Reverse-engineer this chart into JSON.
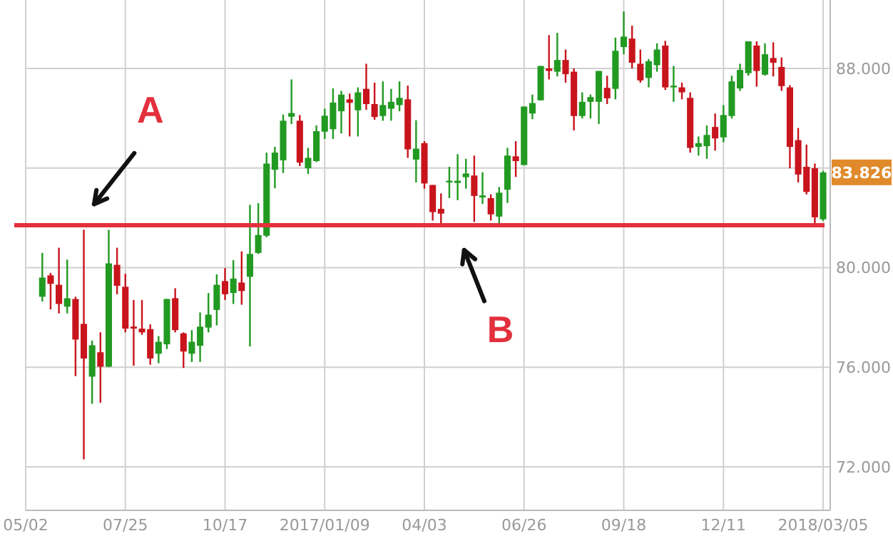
{
  "chart_data": {
    "type": "candlestick",
    "x": [
      "2016-05-16",
      "2016-05-23",
      "2016-05-30",
      "2016-06-06",
      "2016-06-13",
      "2016-06-20",
      "2016-06-27",
      "2016-07-04",
      "2016-07-11",
      "2016-07-18",
      "2016-07-25",
      "2016-08-01",
      "2016-08-08",
      "2016-08-15",
      "2016-08-22",
      "2016-08-29",
      "2016-09-05",
      "2016-09-12",
      "2016-09-19",
      "2016-09-26",
      "2016-10-03",
      "2016-10-10",
      "2016-10-17",
      "2016-10-24",
      "2016-10-31",
      "2016-11-07",
      "2016-11-14",
      "2016-11-21",
      "2016-11-28",
      "2016-12-05",
      "2016-12-12",
      "2016-12-19",
      "2016-12-26",
      "2017-01-02",
      "2017-01-09",
      "2017-01-16",
      "2017-01-23",
      "2017-01-30",
      "2017-02-06",
      "2017-02-13",
      "2017-02-20",
      "2017-02-27",
      "2017-03-06",
      "2017-03-13",
      "2017-03-20",
      "2017-03-27",
      "2017-04-03",
      "2017-04-10",
      "2017-04-17",
      "2017-04-24",
      "2017-05-01",
      "2017-05-08",
      "2017-05-15",
      "2017-05-22",
      "2017-05-29",
      "2017-06-05",
      "2017-06-12",
      "2017-06-19",
      "2017-06-26",
      "2017-07-03",
      "2017-07-10",
      "2017-07-17",
      "2017-07-24",
      "2017-07-31",
      "2017-08-07",
      "2017-08-14",
      "2017-08-21",
      "2017-08-28",
      "2017-09-04",
      "2017-09-11",
      "2017-09-18",
      "2017-09-25",
      "2017-10-02",
      "2017-10-09",
      "2017-10-16",
      "2017-10-23",
      "2017-10-30",
      "2017-11-06",
      "2017-11-13",
      "2017-11-20",
      "2017-11-27",
      "2017-12-04",
      "2017-12-11",
      "2017-12-18",
      "2017-12-25",
      "2018-01-01",
      "2018-01-08",
      "2018-01-15",
      "2018-01-22",
      "2018-01-29",
      "2018-02-05",
      "2018-02-12",
      "2018-02-19",
      "2018-02-26",
      "2018-03-05"
    ],
    "ohlc": [
      [
        78.83,
        80.59,
        78.64,
        79.6
      ],
      [
        79.69,
        79.79,
        78.32,
        79.35
      ],
      [
        79.31,
        80.8,
        78.16,
        78.54
      ],
      [
        78.43,
        80.32,
        78.16,
        78.77
      ],
      [
        78.74,
        78.83,
        75.64,
        77.11
      ],
      [
        77.74,
        81.52,
        72.3,
        76.35
      ],
      [
        75.62,
        77.07,
        74.53,
        76.88
      ],
      [
        76.6,
        77.4,
        74.57,
        76.02
      ],
      [
        76.02,
        81.52,
        76.0,
        80.17
      ],
      [
        80.11,
        80.8,
        78.93,
        79.27
      ],
      [
        79.23,
        79.75,
        77.4,
        77.55
      ],
      [
        77.63,
        78.7,
        76.06,
        77.55
      ],
      [
        77.55,
        78.7,
        77.3,
        77.4
      ],
      [
        77.53,
        77.72,
        76.1,
        76.35
      ],
      [
        76.54,
        77.25,
        76.16,
        77.02
      ],
      [
        76.92,
        78.74,
        76.73,
        78.74
      ],
      [
        78.77,
        79.17,
        77.4,
        77.49
      ],
      [
        77.36,
        77.4,
        75.97,
        76.63
      ],
      [
        76.54,
        77.49,
        76.21,
        77.02
      ],
      [
        76.86,
        78.2,
        76.21,
        77.63
      ],
      [
        77.59,
        78.98,
        77.4,
        78.11
      ],
      [
        78.3,
        79.73,
        77.68,
        79.31
      ],
      [
        79.46,
        79.98,
        78.7,
        78.93
      ],
      [
        78.98,
        80.3,
        78.54,
        79.56
      ],
      [
        79.4,
        80.65,
        78.51,
        79.06
      ],
      [
        79.63,
        82.52,
        76.83,
        80.55
      ],
      [
        80.59,
        82.59,
        80.55,
        81.31
      ],
      [
        81.28,
        84.62,
        81.22,
        84.18
      ],
      [
        83.93,
        84.85,
        83.19,
        84.62
      ],
      [
        84.31,
        86.15,
        83.8,
        85.9
      ],
      [
        86.06,
        87.56,
        85.77,
        86.21
      ],
      [
        85.9,
        86.13,
        84.08,
        84.22
      ],
      [
        83.99,
        84.81,
        83.76,
        84.41
      ],
      [
        84.28,
        85.71,
        84.24,
        85.48
      ],
      [
        85.46,
        86.38,
        85.17,
        86.1
      ],
      [
        85.56,
        87.2,
        85.17,
        86.63
      ],
      [
        86.28,
        87.1,
        85.39,
        86.95
      ],
      [
        86.76,
        86.99,
        85.27,
        86.62
      ],
      [
        86.32,
        87.24,
        85.27,
        87.04
      ],
      [
        87.18,
        88.19,
        86.34,
        86.57
      ],
      [
        86.57,
        87.43,
        85.94,
        86.05
      ],
      [
        86.09,
        87.48,
        85.9,
        86.53
      ],
      [
        86.38,
        87.18,
        85.9,
        86.66
      ],
      [
        86.53,
        87.48,
        86.28,
        86.82
      ],
      [
        86.76,
        87.31,
        84.41,
        84.75
      ],
      [
        84.34,
        85.92,
        83.42,
        84.78
      ],
      [
        85.0,
        85.08,
        83.17,
        83.38
      ],
      [
        83.32,
        83.32,
        81.89,
        82.23
      ],
      [
        82.36,
        82.98,
        81.66,
        82.17
      ],
      [
        83.42,
        84.05,
        82.79,
        83.49
      ],
      [
        83.4,
        84.56,
        82.71,
        83.49
      ],
      [
        83.63,
        84.37,
        83.17,
        83.78
      ],
      [
        83.7,
        84.5,
        81.83,
        82.88
      ],
      [
        82.82,
        83.83,
        82.56,
        82.9
      ],
      [
        82.79,
        82.94,
        81.89,
        82.14
      ],
      [
        82.05,
        83.24,
        81.76,
        83.01
      ],
      [
        83.13,
        84.81,
        82.6,
        84.5
      ],
      [
        84.47,
        85.08,
        83.64,
        84.28
      ],
      [
        84.12,
        86.47,
        84.12,
        86.47
      ],
      [
        86.19,
        86.95,
        85.96,
        86.61
      ],
      [
        86.72,
        88.1,
        86.72,
        88.1
      ],
      [
        88.0,
        89.34,
        87.56,
        87.9
      ],
      [
        87.87,
        89.43,
        87.68,
        88.34
      ],
      [
        88.34,
        88.76,
        87.43,
        87.77
      ],
      [
        87.87,
        88.0,
        85.51,
        86.09
      ],
      [
        86.09,
        87.04,
        85.99,
        86.66
      ],
      [
        86.66,
        86.95,
        85.99,
        86.85
      ],
      [
        86.66,
        87.9,
        85.77,
        87.9
      ],
      [
        87.22,
        87.71,
        86.57,
        86.8
      ],
      [
        87.18,
        89.24,
        86.76,
        88.71
      ],
      [
        88.86,
        90.29,
        88.57,
        89.28
      ],
      [
        89.2,
        89.72,
        88.0,
        88.23
      ],
      [
        88.19,
        88.76,
        87.43,
        87.52
      ],
      [
        87.62,
        88.38,
        87.24,
        88.29
      ],
      [
        88.13,
        89.01,
        87.87,
        88.76
      ],
      [
        88.92,
        89.11,
        87.14,
        87.24
      ],
      [
        87.24,
        88.1,
        86.66,
        87.31
      ],
      [
        87.24,
        87.43,
        86.76,
        87.04
      ],
      [
        86.82,
        87.04,
        84.62,
        84.81
      ],
      [
        84.85,
        85.27,
        84.5,
        85.0
      ],
      [
        84.88,
        85.71,
        84.37,
        85.33
      ],
      [
        85.65,
        86.19,
        84.7,
        85.19
      ],
      [
        85.23,
        86.53,
        85.04,
        86.13
      ],
      [
        86.09,
        87.71,
        85.99,
        87.48
      ],
      [
        87.2,
        88.19,
        87.1,
        87.94
      ],
      [
        87.81,
        89.09,
        87.71,
        89.09
      ],
      [
        88.92,
        89.09,
        87.27,
        87.9
      ],
      [
        87.75,
        89.01,
        87.71,
        88.57
      ],
      [
        88.42,
        89.05,
        87.68,
        88.23
      ],
      [
        88.06,
        88.44,
        87.1,
        87.29
      ],
      [
        87.24,
        87.33,
        83.99,
        84.85
      ],
      [
        85.12,
        85.61,
        83.42,
        83.74
      ],
      [
        84.05,
        84.94,
        82.94,
        83.04
      ],
      [
        83.99,
        84.18,
        81.75,
        82.02
      ],
      [
        81.94,
        83.89,
        81.88,
        83.826
      ]
    ],
    "colors": [
      "#229a22",
      "#c8141c",
      "#c8141c",
      "#229a22",
      "#c8141c",
      "#c8141c",
      "#229a22",
      "#c8141c",
      "#229a22",
      "#c8141c",
      "#c8141c",
      "#c8141c",
      "#c8141c",
      "#c8141c",
      "#229a22",
      "#229a22",
      "#c8141c",
      "#c8141c",
      "#229a22",
      "#229a22",
      "#229a22",
      "#229a22",
      "#c8141c",
      "#229a22",
      "#c8141c",
      "#229a22",
      "#229a22",
      "#229a22",
      "#229a22",
      "#229a22",
      "#229a22",
      "#c8141c",
      "#229a22",
      "#229a22",
      "#229a22",
      "#229a22",
      "#229a22",
      "#c8141c",
      "#229a22",
      "#c8141c",
      "#c8141c",
      "#229a22",
      "#229a22",
      "#229a22",
      "#c8141c",
      "#229a22",
      "#c8141c",
      "#c8141c",
      "#c8141c",
      "#229a22",
      "#229a22",
      "#229a22",
      "#c8141c",
      "#229a22",
      "#c8141c",
      "#229a22",
      "#229a22",
      "#c8141c",
      "#229a22",
      "#229a22",
      "#229a22",
      "#c8141c",
      "#229a22",
      "#c8141c",
      "#c8141c",
      "#229a22",
      "#229a22",
      "#229a22",
      "#c8141c",
      "#229a22",
      "#229a22",
      "#c8141c",
      "#c8141c",
      "#229a22",
      "#229a22",
      "#c8141c",
      "#229a22",
      "#c8141c",
      "#c8141c",
      "#229a22",
      "#229a22",
      "#c8141c",
      "#229a22",
      "#229a22",
      "#229a22",
      "#229a22",
      "#c8141c",
      "#229a22",
      "#c8141c",
      "#c8141c",
      "#c8141c",
      "#c8141c",
      "#c8141c",
      "#c8141c",
      "#229a22"
    ],
    "xlim": [
      "2016-05-02",
      "2018-03-11"
    ],
    "xticks": [
      {
        "value": "2016-05-02",
        "label": "05/02"
      },
      {
        "value": "2016-07-25",
        "label": "07/25"
      },
      {
        "value": "2016-10-17",
        "label": "10/17"
      },
      {
        "value": "2017-01-09",
        "label": "2017/01/09"
      },
      {
        "value": "2017-04-03",
        "label": "04/03"
      },
      {
        "value": "2017-06-26",
        "label": "06/26"
      },
      {
        "value": "2017-09-18",
        "label": "09/18"
      },
      {
        "value": "2017-12-11",
        "label": "12/11"
      },
      {
        "value": "2018-03-05",
        "label": "2018/03/05"
      }
    ],
    "ylim": [
      70.25,
      90.75
    ],
    "yticks": [
      {
        "value": 72,
        "label": "72.000"
      },
      {
        "value": 76,
        "label": "76.000"
      },
      {
        "value": 80,
        "label": "80.000"
      },
      {
        "value": 84,
        "label": null
      },
      {
        "value": 88,
        "label": "88.000"
      }
    ],
    "grid": true,
    "ref_lines": [
      {
        "axis": "y",
        "value": 81.7,
        "color": "#e3303c"
      }
    ],
    "annotations": [
      "A",
      "B",
      {
        "text": "83.826",
        "x": "2018-03-05",
        "y": 83.826
      }
    ]
  }
}
